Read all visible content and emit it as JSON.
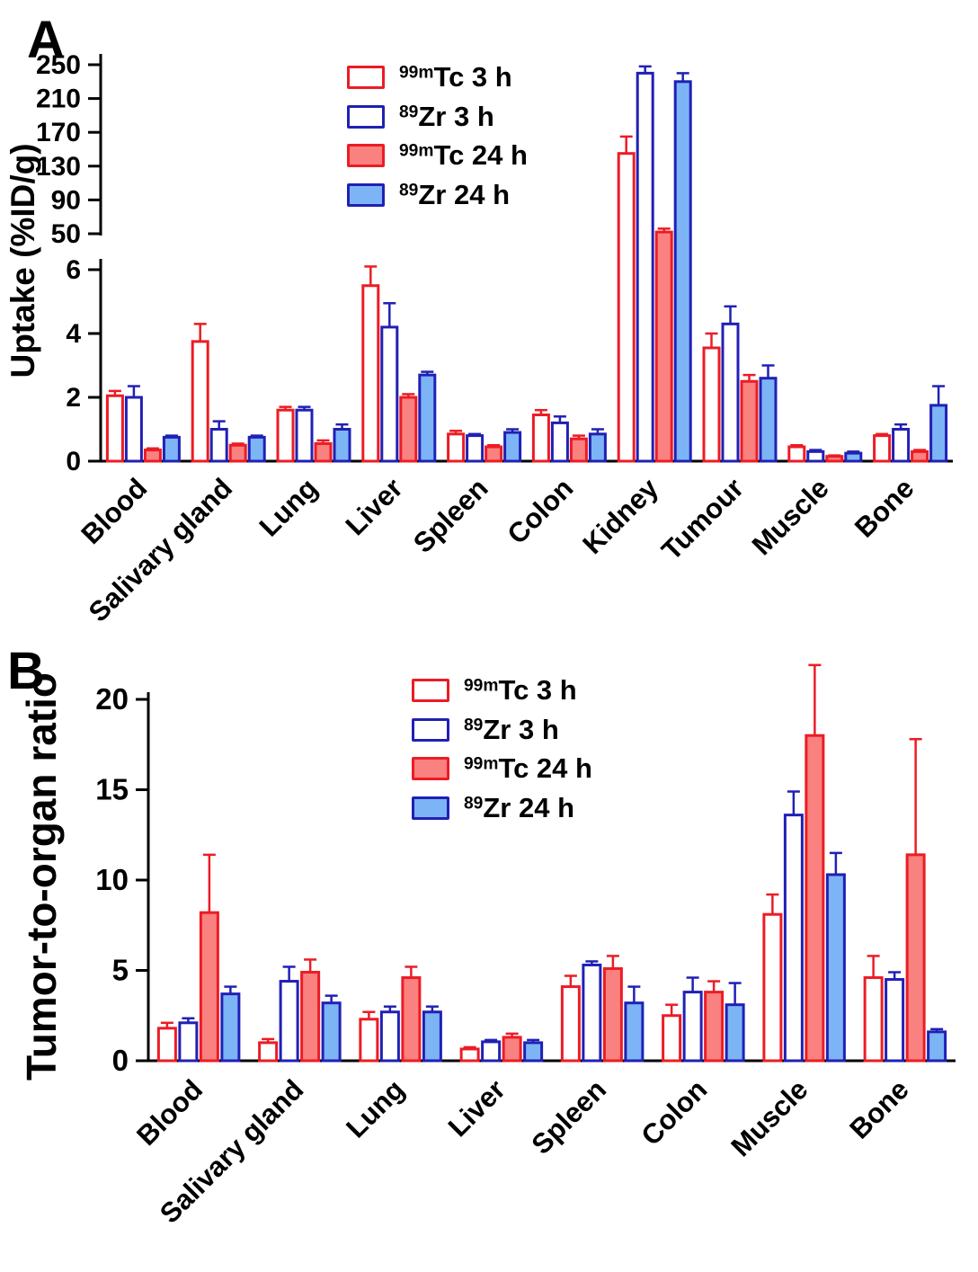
{
  "panels": {
    "a_letter": "A",
    "b_letter": "B"
  },
  "colors": {
    "red": "#EC1C24",
    "blue": "#2020B5",
    "red_fill": "#F9817F",
    "blue_fill": "#7CB4F5",
    "white": "#FFFFFF",
    "black": "#000000"
  },
  "legend": {
    "entries": [
      {
        "sup": "99m",
        "rest": "Tc 3 h",
        "fill": "white",
        "stroke": "red"
      },
      {
        "sup": "89",
        "rest": "Zr 3 h",
        "fill": "white",
        "stroke": "blue"
      },
      {
        "sup": "99m",
        "rest": "Tc 24 h",
        "fill": "red_fill",
        "stroke": "red"
      },
      {
        "sup": "89",
        "rest": "Zr 24 h",
        "fill": "blue_fill",
        "stroke": "blue"
      }
    ]
  },
  "chart_data": [
    {
      "id": "panel_a",
      "type": "bar",
      "title": "",
      "ylabel": "Uptake (%ID/g)",
      "broken_axis": true,
      "axis_break": [
        6,
        50
      ],
      "yticks": [
        [
          0,
          2,
          4,
          6
        ],
        [
          50,
          90,
          130,
          170,
          210,
          250
        ]
      ],
      "ylim_bottom": [
        0,
        6
      ],
      "ylim_top": [
        50,
        250
      ],
      "grid": false,
      "legend_position": "upper-left-inside",
      "categories": [
        "Blood",
        "Salivary gland",
        "Lung",
        "Liver",
        "Spleen",
        "Colon",
        "Kidney",
        "Tumour",
        "Muscle",
        "Bone"
      ],
      "series": [
        {
          "name": "99mTc 3 h",
          "fill": "white",
          "stroke": "red",
          "values": [
            2.05,
            3.75,
            1.6,
            5.5,
            0.85,
            1.45,
            145,
            3.55,
            0.45,
            0.8
          ],
          "errors": [
            0.15,
            0.55,
            0.1,
            0.6,
            0.1,
            0.15,
            20,
            0.45,
            0.05,
            0.05
          ]
        },
        {
          "name": "89Zr 3 h",
          "fill": "white",
          "stroke": "blue",
          "values": [
            2.0,
            1.0,
            1.6,
            4.2,
            0.8,
            1.2,
            240,
            4.3,
            0.3,
            1.0
          ],
          "errors": [
            0.35,
            0.25,
            0.1,
            0.75,
            0.05,
            0.2,
            8,
            0.55,
            0.05,
            0.15
          ]
        },
        {
          "name": "99mTc 24 h",
          "fill": "red_fill",
          "stroke": "red",
          "values": [
            0.35,
            0.5,
            0.55,
            2.0,
            0.45,
            0.7,
            52,
            2.5,
            0.15,
            0.3
          ],
          "errors": [
            0.05,
            0.05,
            0.1,
            0.1,
            0.05,
            0.1,
            4,
            0.2,
            0.03,
            0.05
          ]
        },
        {
          "name": "89Zr 24 h",
          "fill": "blue_fill",
          "stroke": "blue",
          "values": [
            0.75,
            0.75,
            1.0,
            2.7,
            0.9,
            0.85,
            230,
            2.6,
            0.25,
            1.75
          ],
          "errors": [
            0.05,
            0.05,
            0.15,
            0.1,
            0.1,
            0.15,
            10,
            0.4,
            0.05,
            0.6
          ]
        }
      ]
    },
    {
      "id": "panel_b",
      "type": "bar",
      "title": "",
      "ylabel": "Tumor-to-organ ratio",
      "broken_axis": false,
      "yticks": [
        [
          0,
          5,
          10,
          15,
          20
        ]
      ],
      "ylim": [
        0,
        22
      ],
      "grid": false,
      "legend_position": "upper-center-inside",
      "categories": [
        "Blood",
        "Salivary gland",
        "Lung",
        "Liver",
        "Spleen",
        "Colon",
        "Muscle",
        "Bone"
      ],
      "series": [
        {
          "name": "99mTc 3 h",
          "fill": "white",
          "stroke": "red",
          "values": [
            1.8,
            1.0,
            2.3,
            0.65,
            4.1,
            2.5,
            8.1,
            4.6
          ],
          "errors": [
            0.3,
            0.2,
            0.4,
            0.1,
            0.6,
            0.6,
            1.1,
            1.2
          ]
        },
        {
          "name": "89Zr 3 h",
          "fill": "white",
          "stroke": "blue",
          "values": [
            2.1,
            4.4,
            2.7,
            1.05,
            5.3,
            3.8,
            13.6,
            4.5
          ],
          "errors": [
            0.25,
            0.8,
            0.3,
            0.1,
            0.2,
            0.8,
            1.3,
            0.4
          ]
        },
        {
          "name": "99mTc 24 h",
          "fill": "red_fill",
          "stroke": "red",
          "values": [
            8.2,
            4.9,
            4.6,
            1.3,
            5.1,
            3.8,
            18.0,
            11.4
          ],
          "errors": [
            3.2,
            0.7,
            0.6,
            0.2,
            0.7,
            0.6,
            3.9,
            6.4
          ]
        },
        {
          "name": "89Zr 24 h",
          "fill": "blue_fill",
          "stroke": "blue",
          "values": [
            3.7,
            3.2,
            2.7,
            1.0,
            3.2,
            3.1,
            10.3,
            1.6
          ],
          "errors": [
            0.4,
            0.4,
            0.3,
            0.15,
            0.9,
            1.2,
            1.2,
            0.15
          ]
        }
      ]
    }
  ]
}
